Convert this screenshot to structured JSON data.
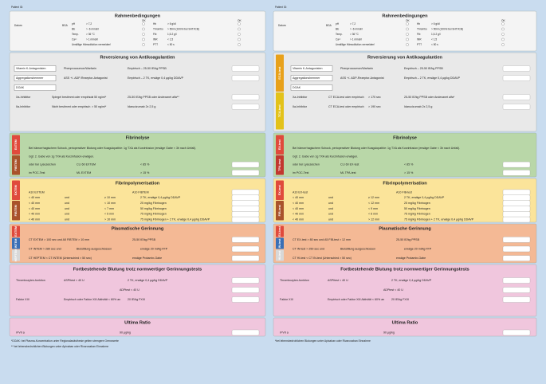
{
  "panels": [
    {
      "patient_label": "Patient ID:",
      "date_label": "Datum:",
      "bga_label": "BGA",
      "ok_label": "OK",
      "sections": [
        {
          "title": "Rahmenbedingungen",
          "rows": [
            [
              "pH",
              "> 7,2",
              "Hb",
              "> 6 g/dl"
            ],
            [
              "BE",
              "> -6 mmol/l",
              "Thrombo",
              "> 50/nl (100/nl bei SHT/ICB)"
            ],
            [
              "Temp.",
              "> 36 °C",
              "Fib",
              "1,5-2 g/l"
            ],
            [
              "Ca²⁺",
              "> 1 mmol/l",
              "INR",
              "< 1,5"
            ],
            [
              "Unstillige Hämodilution vermeiden!",
              "",
              "PTT",
              "< 50 s"
            ]
          ]
        },
        {
          "title": "Reversierung von Antikoagulantien",
          "rows": [
            [
              "Vitamin K-Antagonisten",
              "Phenprocoumon/Warfarin",
              "Empirisch – 25-50 IE/kg PPSB"
            ],
            [
              "Aggregationshemmer",
              "ASS +/- ADP-Rezeptor-Antagonist",
              "Empirisch – 2 TK, erwäge 0,4 µg/kg DDAVP"
            ],
            [
              "DOAK"
            ],
            [
              "Xa-Inhibitor",
              "Spiegel bestimmt oder empirisch",
              "> 50 ng/ml*",
              "25-50 IE/kg PPSB oder Andexanet alfa**"
            ],
            [
              "IIa-Inhibitor",
              "Nicht bestimmt oder empirisch",
              "> 50 ng/ml*",
              "Idarucizumab 2x 2,5 g"
            ]
          ]
        },
        {
          "title": "Fibrinolyse",
          "tabs": [
            {
              "label": "EXTEM",
              "color": "#e04a3c"
            },
            {
              "label": "FIBTEM",
              "color": "#a9532b"
            }
          ],
          "rows": [
            [
              "Bei hämorrhagischem Schock, perioperativer Blutung oder Koagulopathie: 1g TXA als Kurzinfusion (erwäge Gabe < 3h nach Unfall)."
            ],
            [
              "Ggf. 2. Gabe von 1g TXA als Kurzinfusion erwägen."
            ],
            [
              "oder bei Lysezeichen",
              "CLI 60 EXTEM",
              "< 85 %"
            ],
            [
              "im POC-Test",
              "ML EXTEM",
              "> 15 %"
            ]
          ]
        },
        {
          "title": "Fibrinpolymerisation",
          "tabs": [
            {
              "label": "EXTEM",
              "color": "#e04a3c"
            },
            {
              "label": "FIBTEM",
              "color": "#a9532b"
            }
          ],
          "rows": [
            [
              "A10 EXTEM",
              "A10 FIBTEM"
            ],
            [
              "< 40 mm",
              "und",
              "≥ 10 mm",
              "2 TK, erwäge 0,4 µg/kg DDAVP"
            ],
            [
              "< 40 mm",
              "und",
              "< 10 mm",
              "25 mg/kg Fibrinogen"
            ],
            [
              "< 40 mm",
              "und",
              "< 7 mm",
              "50 mg/kg Fibrinogen"
            ],
            [
              "< 40 mm",
              "und",
              "< 5 mm",
              "75 mg/kg Fibrinogen"
            ],
            [
              "< 40 mm",
              "und",
              "> 10 mm",
              "75 mg/kg Fibrinogen + 2 TK, erwäge 0,4 µg/kg DDAVP"
            ]
          ]
        },
        {
          "title": "Plasmatische Gerinnung",
          "tabs": [
            {
              "label": "EXTEM",
              "color": "#e04a3c"
            },
            {
              "label": "INTEM",
              "color": "#3a6fb5"
            },
            {
              "label": "HEPTEM",
              "color": "#d8d8d8"
            }
          ],
          "rows": [
            [
              "CT EXTEM > 100 sec und A5 FIBTEM > 10 mm",
              "25-50 IE/kg PPSB"
            ],
            [
              "CT INTEM > 280 sec und",
              "Blutstillung ausgeschlossen",
              "erwäge 20 ml/kg FFP"
            ],
            [
              "CT HEPTEM < CT INTEM (Unterschied > 50 sec)",
              "erwäge Protamin-Gabe"
            ]
          ]
        },
        {
          "title": "Fortbestehende Blutung trotz normwertiger Gerinnungstests",
          "rows": [
            [
              "Thrombozyten-funktion",
              "ASPItest < 40 U",
              "2 TK, erwäge 0,4 µg/kg DDAVP"
            ],
            [
              "",
              "ADPtest < 40 U"
            ],
            [
              "Faktor XIII",
              "Empirisch oder Faktor XIII Aktivität < 60% an",
              "20 IE/kg FXIII"
            ]
          ]
        },
        {
          "title": "Ultima Ratio",
          "rows": [
            [
              "rFVII a",
              "90 µg/kg"
            ]
          ]
        }
      ],
      "footnotes": [
        "*DOAK: bei Plasma-Konzentration unter Regionalanästhesie gelten strengere Grenzwerte",
        "** bei lebensbedrohlichen Blutungen unter Apixaban oder Rivaroxaban Einnahme"
      ]
    },
    {
      "patient_label": "Patient ID:",
      "date_label": "Datum:",
      "bga_label": "BGA",
      "ok_label": "OK",
      "sections": [
        {
          "title": "Rahmenbedingungen",
          "rows": [
            [
              "pH",
              "> 7,2",
              "Hb",
              "> 6 g/dl"
            ],
            [
              "BE",
              "> -6 mmol/l",
              "Thrombo",
              "> 50/nl (100/nl bei SHT/ICB)"
            ],
            [
              "Temp.",
              "> 36 °C",
              "Fib",
              "1,5-2 g/l"
            ],
            [
              "Ca²⁺",
              "> 1 mmol/l",
              "INR",
              "< 1,5"
            ],
            [
              "Unstillige Hämodilution vermeiden!",
              "",
              "PTT",
              "< 50 s"
            ]
          ]
        },
        {
          "title": "Reversierung von Antikoagulantien",
          "tabs": [
            {
              "label": "ECA-test",
              "color": "#e8a11a"
            },
            {
              "label": "TCA-test",
              "color": "#e3c21a"
            }
          ],
          "rows": [
            [
              "Vitamin K-Antagonisten",
              "Phenprocoumon/Warfarin",
              "Empirisch – 25-50 IE/kg PPSB"
            ],
            [
              "Aggregationshemmer",
              "ASS +/- ADP-Rezeptor-Antagonist",
              "Empirisch – 2 TK, erwäge 0,4 µg/kg DDAVP"
            ],
            [
              "DOAK"
            ],
            [
              "Xa-Inhibitor",
              "CT ECA-test oder empirisch",
              "> 170 sec",
              "25-50 IE/kg PPSB oder Andexanet alfa*"
            ],
            [
              "IIa-Inhibitor",
              "CT ECA-test oder empirisch",
              "> 190 sec",
              "Idarucizumab 2x 2,5 g"
            ]
          ]
        },
        {
          "title": "Fibrinolyse",
          "tabs": [
            {
              "label": "EX-test",
              "color": "#e04a3c"
            },
            {
              "label": "TPA-test",
              "color": "#c2372f"
            }
          ],
          "rows": [
            [
              "Bei hämorrhagischem Schock, perioperativer Blutung oder Koagulopathie: 1g TXA als Kurzinfusion (erwäge Gabe < 3h nach Unfall)."
            ],
            [
              "Ggf. 2. Gabe von 1g TXA als Kurzinfusion erwägen."
            ],
            [
              "oder bei Lysezeichen",
              "CLI 60 EX-test",
              "< 85 %"
            ],
            [
              "im POC-Test",
              "ML TPA-test",
              "> 15 %"
            ]
          ]
        },
        {
          "title": "Fibrinpolymerisation",
          "tabs": [
            {
              "label": "EX-test",
              "color": "#e04a3c"
            },
            {
              "label": "FIB-test",
              "color": "#a9532b"
            }
          ],
          "rows": [
            [
              "A10 EX-test",
              "A10 FIB-test"
            ],
            [
              "< 40 mm",
              "und",
              "≥ 12 mm",
              "2 TK, erwäge 0,4 µg/kg DDAVP"
            ],
            [
              "< 40 mm",
              "und",
              "< 12 mm",
              "25 mg/kg Fibrinogen"
            ],
            [
              "< 40 mm",
              "und",
              "< 9 mm",
              "50 mg/kg Fibrinogen"
            ],
            [
              "< 40 mm",
              "und",
              "< 6 mm",
              "75 mg/kg Fibrinogen"
            ],
            [
              "< 40 mm",
              "und",
              "> 12 mm",
              "75 mg/kg Fibrinogen + 2 TK, erwäge 0,4 µg/kg DDAVP"
            ]
          ]
        },
        {
          "title": "Plasmatische Gerinnung",
          "tabs": [
            {
              "label": "EX-test",
              "color": "#e04a3c"
            },
            {
              "label": "IN-test",
              "color": "#3a6fb5"
            },
            {
              "label": "HI-test",
              "color": "#d8d8d8"
            }
          ],
          "rows": [
            [
              "CT EX-test > 80 sec und A5 FIB-test > 12 mm",
              "25-50 IE/kg PPSB"
            ],
            [
              "CT IN-test > 250 sec und",
              "Blutstillung ausgeschlossen",
              "erwäge 20 ml/kg FFP"
            ],
            [
              "CT HI-test < CT IN-test (Unterschied > 50 sec)",
              "erwäge Protamin-Gabe"
            ]
          ]
        },
        {
          "title": "Fortbestehende Blutung trotz normwertiger Gerinnungstests",
          "rows": [
            [
              "Thrombozyten-funktion",
              "ASPItest < 40 U",
              "2 TK, erwäge 0,4 µg/kg DDAVP"
            ],
            [
              "",
              "ADPtest < 40 U"
            ],
            [
              "Faktor XIII",
              "Empirisch oder Faktor XIII Aktivität < 60% an",
              "20 IE/kg FXIII"
            ]
          ]
        },
        {
          "title": "Ultima Ratio",
          "rows": [
            [
              "rFVII a",
              "90 µg/kg"
            ]
          ]
        }
      ],
      "footnotes": [
        "*bei lebensbedrohlichen Blutungen unter Apixaban oder Rivaroxaban Einnahme"
      ]
    }
  ]
}
